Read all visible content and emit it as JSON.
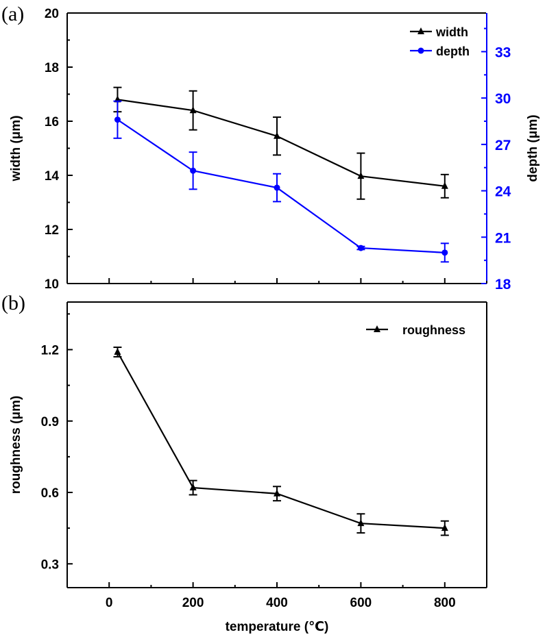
{
  "chart_data": [
    {
      "type": "line",
      "panel_label": "(a)",
      "x": [
        20,
        200,
        400,
        600,
        800
      ],
      "xlim": [
        -100,
        900
      ],
      "xlabel": "",
      "ylabel": "width (μm)",
      "ylim": [
        10,
        20
      ],
      "yticks": [
        10,
        12,
        14,
        16,
        18,
        20
      ],
      "y2label": "depth (μm)",
      "y2lim": [
        18,
        35.5
      ],
      "y2ticks": [
        18,
        21,
        24,
        27,
        30,
        33
      ],
      "legend_position": "top-right",
      "series": [
        {
          "name": "width",
          "axis": "left",
          "marker": "triangle",
          "color": "#000000",
          "values": [
            16.8,
            16.4,
            15.45,
            13.97,
            13.6
          ],
          "errors": [
            0.45,
            0.72,
            0.7,
            0.85,
            0.43
          ]
        },
        {
          "name": "depth",
          "axis": "right",
          "marker": "circle",
          "color": "#0000ff",
          "values": [
            28.6,
            25.3,
            24.2,
            20.3,
            20.0
          ],
          "errors": [
            1.2,
            1.2,
            0.9,
            0.1,
            0.6
          ]
        }
      ]
    },
    {
      "type": "line",
      "panel_label": "(b)",
      "x": [
        20,
        200,
        400,
        600,
        800
      ],
      "xlim": [
        -100,
        900
      ],
      "xticks": [
        0,
        200,
        400,
        600,
        800
      ],
      "xlabel": "temperature (℃)",
      "ylabel": "roughness (μm)",
      "ylim": [
        0.2,
        1.4
      ],
      "yticks": [
        0.3,
        0.6,
        0.9,
        1.2
      ],
      "ytick_labels": [
        "0.3",
        "0.6",
        "0.9",
        "1.2"
      ],
      "legend_position": "top-right",
      "series": [
        {
          "name": "roughness",
          "axis": "left",
          "marker": "triangle",
          "color": "#000000",
          "values": [
            1.19,
            0.62,
            0.595,
            0.47,
            0.45
          ],
          "errors": [
            0.02,
            0.03,
            0.03,
            0.04,
            0.03
          ]
        }
      ]
    }
  ]
}
